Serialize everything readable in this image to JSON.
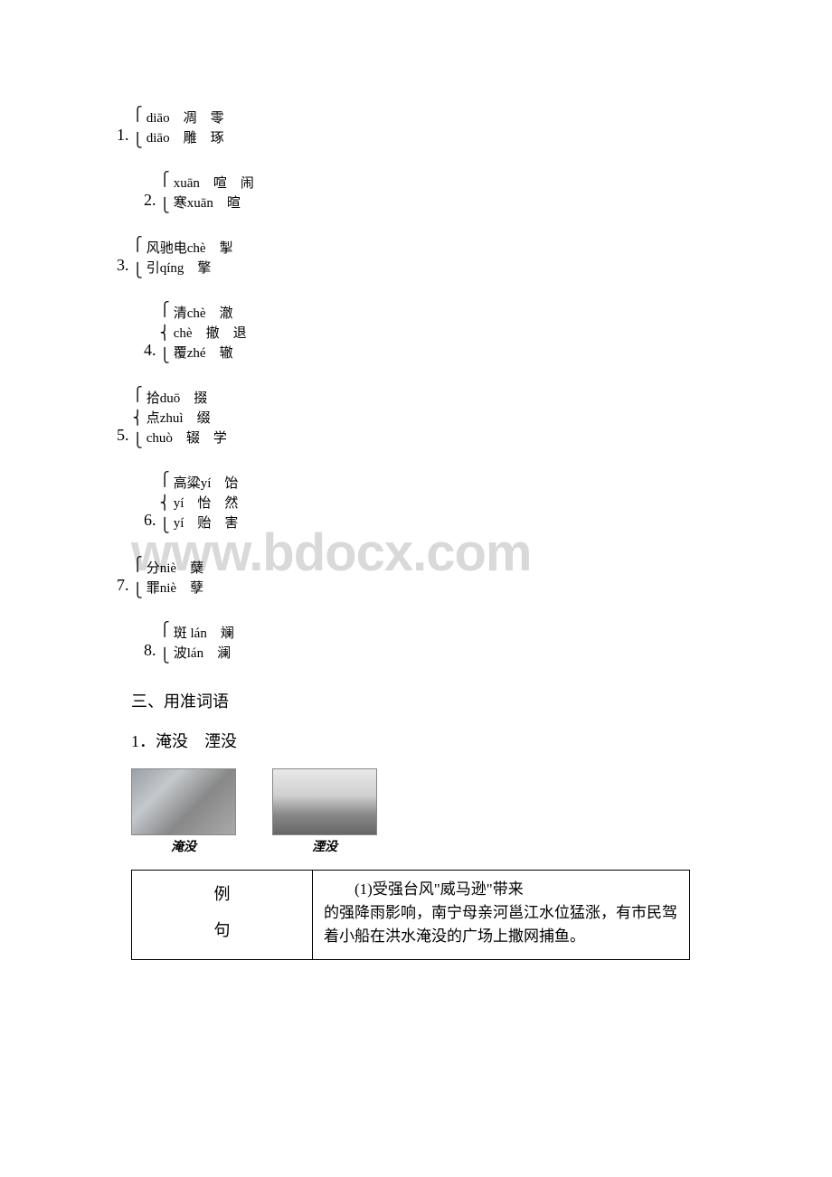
{
  "watermark": "www.bdocx.com",
  "vocab": [
    {
      "num": "1.",
      "lines": [
        "diāo　凋　零",
        "diāo　雕　琢"
      ],
      "rows": 2,
      "cls": "item-1"
    },
    {
      "num": "2.",
      "lines": [
        "xuān　喧　闹",
        "寒xuān　暄"
      ],
      "rows": 2,
      "cls": "item-2"
    },
    {
      "num": "3.",
      "lines": [
        "风驰电chè　掣",
        "引qíng　擎"
      ],
      "rows": 2,
      "cls": "item-3"
    },
    {
      "num": "4.",
      "lines": [
        "清chè　澈",
        "chè　撤　退",
        "覆zhé　辙"
      ],
      "rows": 3,
      "cls": "item-4"
    },
    {
      "num": "5.",
      "lines": [
        "拾duō　掇",
        "点zhuì　缀",
        "chuò　辍　学"
      ],
      "rows": 3,
      "cls": "item-5"
    },
    {
      "num": "6.",
      "lines": [
        "高粱yí　饴",
        "yí　怡　然",
        "yí　贻　害"
      ],
      "rows": 3,
      "cls": "item-6"
    },
    {
      "num": "7.",
      "lines": [
        "分niè　蘖",
        "罪niè　孽"
      ],
      "rows": 2,
      "cls": "item-7"
    },
    {
      "num": "8.",
      "lines": [
        "斑 lán　斓",
        "波lán　澜"
      ],
      "rows": 2,
      "cls": "item-8"
    }
  ],
  "section3_title": "三、用准词语",
  "sub1": "1．淹没　湮没",
  "img_captions": [
    "淹没",
    "湮没"
  ],
  "table": {
    "left_lines": [
      "例",
      "句"
    ],
    "right_first": "(1)受强台风\"威马逊\"带来",
    "right_rest": "的强降雨影响，南宁母亲河邕江水位猛涨，有市民驾着小船在洪水淹没的广场上撒网捕鱼。"
  }
}
